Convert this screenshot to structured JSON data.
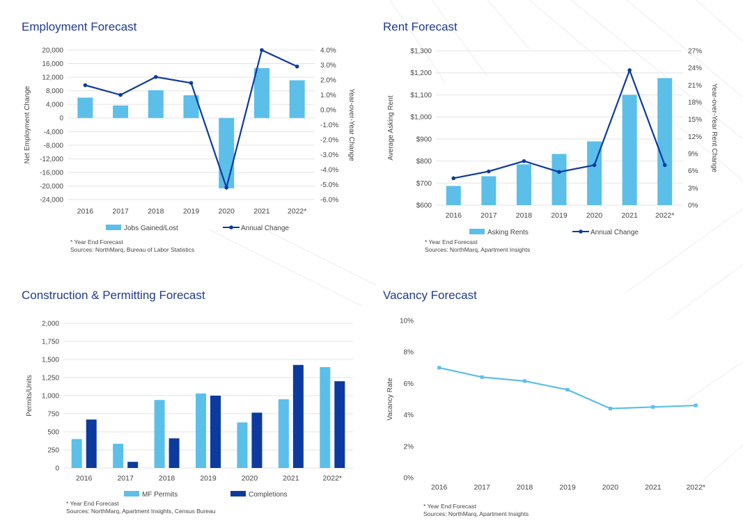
{
  "colors": {
    "title": "#1f3a8f",
    "bar_light": "#5bbfe9",
    "bar_dark": "#0d3a9e",
    "line_dark": "#0d3a9e",
    "line_light": "#5bbfe9",
    "grid": "#e3e3e3",
    "text": "#444444"
  },
  "chart_data": [
    {
      "id": "employment",
      "type": "bar",
      "title": "Employment Forecast",
      "categories": [
        "2016",
        "2017",
        "2018",
        "2019",
        "2020",
        "2021",
        "2022*"
      ],
      "ylabel": "Net Employment Change",
      "y2label": "Year-over-Year Change",
      "ylim": [
        -24000,
        20000
      ],
      "yticks": [
        "20,000",
        "16,000",
        "12,000",
        "8,000",
        "4,000",
        "0",
        "-4,000",
        "-8,000",
        "-12,000",
        "-16,000",
        "-20,000",
        "-24,000"
      ],
      "y2lim": [
        -6.0,
        4.0
      ],
      "y2ticks": [
        "4.0%",
        "3.0%",
        "2.0%",
        "1.0%",
        "0.0%",
        "-1.0%",
        "-2.0%",
        "-3.0%",
        "-4.0%",
        "-5.0%",
        "-6.0%"
      ],
      "grid": true,
      "legend_position": "bottom",
      "series": [
        {
          "name": "Jobs Gained/Lost",
          "kind": "bar",
          "axis": "left",
          "values": [
            6000,
            3700,
            8200,
            6700,
            -20700,
            14700,
            11100
          ]
        },
        {
          "name": "Annual Change",
          "kind": "line",
          "axis": "right",
          "values": [
            1.65,
            1.0,
            2.2,
            1.8,
            -5.2,
            4.0,
            2.9
          ]
        }
      ],
      "footnote": "* Year End Forecast",
      "sources": "Sources: NorthMarq, Bureau of Labor Statistics"
    },
    {
      "id": "rent",
      "type": "bar",
      "title": "Rent Forecast",
      "categories": [
        "2016",
        "2017",
        "2018",
        "2019",
        "2020",
        "2021",
        "2022*"
      ],
      "ylabel": "Average Asking Rent",
      "y2label": "Year-over-Year Rent Change",
      "ylim": [
        600,
        1300
      ],
      "yticks": [
        "$1,300",
        "$1,200",
        "$1,100",
        "$1,000",
        "$900",
        "$800",
        "$700",
        "$600"
      ],
      "y2lim": [
        0,
        27
      ],
      "y2ticks": [
        "27%",
        "24%",
        "21%",
        "18%",
        "15%",
        "12%",
        "9%",
        "6%",
        "3%",
        "0%"
      ],
      "grid": true,
      "legend_position": "bottom",
      "series": [
        {
          "name": "Asking Rents",
          "kind": "bar",
          "axis": "left",
          "values": [
            687,
            731,
            785,
            832,
            889,
            1100,
            1176
          ]
        },
        {
          "name": "Annual Change",
          "kind": "line",
          "axis": "right",
          "values": [
            4.7,
            5.9,
            7.7,
            5.8,
            7.0,
            23.6,
            7.0
          ]
        }
      ],
      "footnote": "* Year End Forecast",
      "sources": "Sources: NorthMarq, Apartment Insights"
    },
    {
      "id": "construction",
      "type": "bar",
      "title": "Construction & Permitting Forecast",
      "categories": [
        "2016",
        "2017",
        "2018",
        "2019",
        "2020",
        "2021",
        "2022*"
      ],
      "ylabel": "Permits/Units",
      "ylim": [
        0,
        2000
      ],
      "yticks": [
        "2,000",
        "1,750",
        "1,500",
        "1,250",
        "1,000",
        "750",
        "500",
        "250",
        "0"
      ],
      "grid": true,
      "legend_position": "bottom",
      "series": [
        {
          "name": "MF Permits",
          "kind": "bar",
          "values": [
            400,
            335,
            940,
            1030,
            630,
            950,
            1395
          ]
        },
        {
          "name": "Completions",
          "kind": "bar",
          "values": [
            670,
            85,
            410,
            1000,
            765,
            1425,
            1200
          ]
        }
      ],
      "footnote": "* Year End Forecast",
      "sources": "Sources: NorthMarq, Apartment Insights, Census Bureau"
    },
    {
      "id": "vacancy",
      "type": "line",
      "title": "Vacancy Forecast",
      "categories": [
        "2016",
        "2017",
        "2018",
        "2019",
        "2020",
        "2021",
        "2022*"
      ],
      "ylabel": "Vacancy Rate",
      "ylim": [
        0,
        10
      ],
      "yticks": [
        "10%",
        "8%",
        "6%",
        "4%",
        "2%",
        "0%"
      ],
      "grid": false,
      "series": [
        {
          "kind": "line",
          "values": [
            7.0,
            6.4,
            6.15,
            5.6,
            4.4,
            4.5,
            4.6
          ]
        }
      ],
      "footnote": "* Year End Forecast",
      "sources": "Sources: NorthMarq, Apartment Insights"
    }
  ]
}
